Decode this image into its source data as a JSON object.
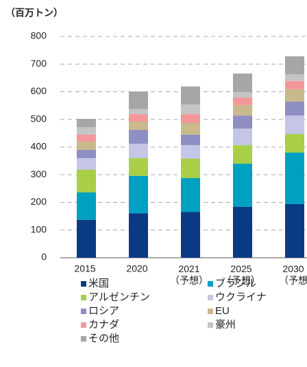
{
  "chart_data": {
    "type": "stacked_bar",
    "y_label": "（百万トン）",
    "categories": [
      "2015",
      "2020",
      "2021\n（予想）",
      "2025\n（予想）",
      "2030\n（予想"
    ],
    "ylim": [
      0,
      800
    ],
    "yticks": [
      0,
      100,
      200,
      300,
      400,
      500,
      600,
      700,
      800
    ],
    "grid": true,
    "series": [
      {
        "name": "米国",
        "color": "#0b3a85",
        "values": [
          137,
          161,
          166,
          184,
          194
        ]
      },
      {
        "name": "ブラジル",
        "color": "#00a0c0",
        "values": [
          99,
          135,
          122,
          156,
          186
        ]
      },
      {
        "name": "アルゼンチン",
        "color": "#a8cf45",
        "values": [
          82,
          64,
          70,
          67,
          67
        ]
      },
      {
        "name": "ウクライナ",
        "color": "#c5c5e5",
        "values": [
          42,
          52,
          49,
          60,
          67
        ]
      },
      {
        "name": "ロシア",
        "color": "#8f8fc4",
        "values": [
          30,
          50,
          38,
          47,
          50
        ]
      },
      {
        "name": "EU",
        "color": "#c9b98c",
        "values": [
          30,
          30,
          42,
          38,
          45
        ]
      },
      {
        "name": "カナダ",
        "color": "#f4979b",
        "values": [
          25,
          27,
          32,
          27,
          30
        ]
      },
      {
        "name": "豪州",
        "color": "#c4c4c4",
        "values": [
          27,
          18,
          35,
          20,
          24
        ]
      },
      {
        "name": "その他",
        "color": "#a6a6a6",
        "values": [
          30,
          64,
          65,
          67,
          65
        ]
      }
    ]
  }
}
